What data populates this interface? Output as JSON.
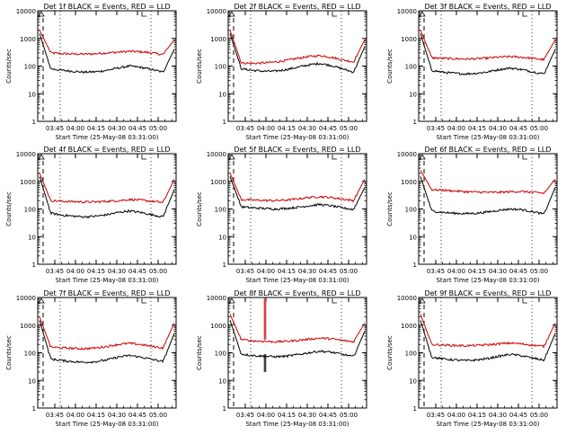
{
  "chart_data": [
    {
      "type": "line",
      "title": "Det 1f BLACK = Events, RED = LLD",
      "xlabel": "Start Time (25-May-08 03:31:00)",
      "ylabel": "Counts/sec",
      "yscale": "log",
      "ylim": [
        1,
        10000
      ],
      "y_ticks": [
        "1",
        "10",
        "100",
        "1000",
        "10000"
      ],
      "x_ticks": [
        "03:45",
        "04:00",
        "04:15",
        "04:30",
        "04:45",
        "05:00"
      ],
      "colors": {
        "Events": "#000000",
        "LLD": "#cc0000"
      },
      "series": [
        {
          "key": "LLD",
          "values": [
            2000,
            300,
            280,
            275,
            270,
            280,
            300,
            320,
            340,
            330,
            300,
            260,
            900
          ]
        },
        {
          "key": "Events",
          "values": [
            1500,
            80,
            70,
            65,
            60,
            62,
            70,
            85,
            100,
            90,
            75,
            60,
            400
          ]
        }
      ]
    },
    {
      "type": "line",
      "title": "Det 2f BLACK = Events, RED = LLD",
      "xlabel": "Start Time (25-May-08 03:31:00)",
      "ylabel": "Counts/sec",
      "yscale": "log",
      "ylim": [
        1,
        10000
      ],
      "y_ticks": [
        "1",
        "10",
        "100",
        "1000",
        "10000"
      ],
      "x_ticks": [
        "03:45",
        "04:00",
        "04:15",
        "04:30",
        "04:45",
        "05:00"
      ],
      "colors": {
        "Events": "#000000",
        "LLD": "#cc0000"
      },
      "series": [
        {
          "key": "LLD",
          "values": [
            2000,
            130,
            125,
            130,
            140,
            160,
            190,
            220,
            240,
            210,
            170,
            140,
            900
          ]
        },
        {
          "key": "Events",
          "values": [
            1500,
            80,
            70,
            65,
            65,
            75,
            90,
            110,
            125,
            105,
            80,
            60,
            500
          ]
        }
      ]
    },
    {
      "type": "line",
      "title": "Det 3f BLACK = Events, RED = LLD",
      "xlabel": "Start Time (25-May-08 03:31:00)",
      "ylabel": "Counts/sec",
      "yscale": "log",
      "ylim": [
        1,
        10000
      ],
      "y_ticks": [
        "1",
        "10",
        "100",
        "1000",
        "10000"
      ],
      "x_ticks": [
        "03:45",
        "04:00",
        "04:15",
        "04:30",
        "04:45",
        "05:00"
      ],
      "colors": {
        "Events": "#000000",
        "LLD": "#cc0000"
      },
      "series": [
        {
          "key": "LLD",
          "values": [
            2000,
            200,
            190,
            185,
            180,
            185,
            195,
            210,
            220,
            210,
            190,
            170,
            900
          ]
        },
        {
          "key": "Events",
          "values": [
            1500,
            70,
            60,
            55,
            52,
            55,
            62,
            75,
            85,
            75,
            62,
            52,
            400
          ]
        }
      ]
    },
    {
      "type": "line",
      "title": "Det 4f BLACK = Events, RED = LLD",
      "xlabel": "Start Time (25-May-08 03:31:00)",
      "ylabel": "Counts/sec",
      "yscale": "log",
      "ylim": [
        1,
        10000
      ],
      "y_ticks": [
        "1",
        "10",
        "100",
        "1000",
        "10000"
      ],
      "x_ticks": [
        "03:45",
        "04:00",
        "04:15",
        "04:30",
        "04:45",
        "05:00"
      ],
      "colors": {
        "Events": "#000000",
        "LLD": "#cc0000"
      },
      "series": [
        {
          "key": "LLD",
          "values": [
            2000,
            200,
            190,
            185,
            180,
            180,
            190,
            200,
            220,
            210,
            190,
            170,
            1200
          ]
        },
        {
          "key": "Events",
          "values": [
            1500,
            70,
            60,
            55,
            52,
            55,
            62,
            75,
            85,
            75,
            62,
            52,
            500
          ]
        }
      ]
    },
    {
      "type": "line",
      "title": "Det 5f BLACK = Events, RED = LLD",
      "xlabel": "Start Time (25-May-08 03:31:00)",
      "ylabel": "Counts/sec",
      "yscale": "log",
      "ylim": [
        1,
        10000
      ],
      "y_ticks": [
        "1",
        "10",
        "100",
        "1000",
        "10000"
      ],
      "x_ticks": [
        "03:45",
        "04:00",
        "04:15",
        "04:30",
        "04:45",
        "05:00"
      ],
      "colors": {
        "Events": "#000000",
        "LLD": "#cc0000"
      },
      "series": [
        {
          "key": "LLD",
          "values": [
            2000,
            220,
            210,
            205,
            200,
            210,
            230,
            260,
            280,
            260,
            230,
            200,
            1200
          ]
        },
        {
          "key": "Events",
          "values": [
            1500,
            120,
            110,
            105,
            100,
            105,
            115,
            130,
            145,
            130,
            110,
            95,
            600
          ]
        }
      ]
    },
    {
      "type": "line",
      "title": "Det 6f BLACK = Events, RED = LLD",
      "xlabel": "Start Time (25-May-08 03:31:00)",
      "ylabel": "Counts/sec",
      "yscale": "log",
      "ylim": [
        1,
        10000
      ],
      "y_ticks": [
        "1",
        "10",
        "100",
        "1000",
        "10000"
      ],
      "x_ticks": [
        "03:45",
        "04:00",
        "04:15",
        "04:30",
        "04:45",
        "05:00"
      ],
      "colors": {
        "Events": "#000000",
        "LLD": "#cc0000"
      },
      "series": [
        {
          "key": "LLD",
          "values": [
            2500,
            500,
            480,
            450,
            420,
            410,
            400,
            400,
            420,
            430,
            400,
            370,
            1200
          ]
        },
        {
          "key": "Events",
          "values": [
            1500,
            85,
            75,
            70,
            68,
            70,
            78,
            90,
            100,
            95,
            80,
            65,
            600
          ]
        }
      ]
    },
    {
      "type": "line",
      "title": "Det 7f BLACK = Events, RED = LLD",
      "xlabel": "Start Time (25-May-08 03:31:00)",
      "ylabel": "Counts/sec",
      "yscale": "log",
      "ylim": [
        1,
        10000
      ],
      "y_ticks": [
        "1",
        "10",
        "100",
        "1000",
        "10000"
      ],
      "x_ticks": [
        "03:45",
        "04:00",
        "04:15",
        "04:30",
        "04:45",
        "05:00"
      ],
      "colors": {
        "Events": "#000000",
        "LLD": "#cc0000"
      },
      "series": [
        {
          "key": "LLD",
          "values": [
            2000,
            160,
            150,
            145,
            140,
            150,
            170,
            200,
            220,
            200,
            170,
            150,
            1200
          ]
        },
        {
          "key": "Events",
          "values": [
            1500,
            60,
            52,
            48,
            45,
            48,
            55,
            70,
            80,
            70,
            58,
            48,
            500
          ]
        }
      ]
    },
    {
      "type": "line",
      "title": "Det 8f BLACK = Events, RED = LLD",
      "xlabel": "Start Time (25-May-08 03:31:00)",
      "ylabel": "Counts/sec",
      "yscale": "log",
      "ylim": [
        1,
        10000
      ],
      "y_ticks": [
        "1",
        "10",
        "100",
        "1000",
        "10000"
      ],
      "x_ticks": [
        "03:45",
        "04:00",
        "04:15",
        "04:30",
        "04:45",
        "05:00"
      ],
      "colors": {
        "Events": "#000000",
        "LLD": "#cc0000"
      },
      "series": [
        {
          "key": "LLD",
          "values": [
            2500,
            300,
            270,
            260,
            250,
            260,
            280,
            310,
            340,
            320,
            280,
            250,
            1200
          ]
        },
        {
          "key": "Events",
          "values": [
            1500,
            90,
            80,
            75,
            72,
            75,
            85,
            100,
            115,
            105,
            88,
            72,
            600
          ]
        }
      ],
      "spikes": [
        {
          "series": "LLD",
          "x_frac": 0.255,
          "values": [
            300,
            10000
          ]
        },
        {
          "series": "LLD",
          "x_frac": 0.265,
          "values": [
            300,
            10000
          ]
        },
        {
          "series": "Events",
          "x_frac": 0.255,
          "values": [
            20,
            90
          ]
        },
        {
          "series": "Events",
          "x_frac": 0.265,
          "values": [
            20,
            90
          ]
        }
      ]
    },
    {
      "type": "line",
      "title": "Det 9f BLACK = Events, RED = LLD",
      "xlabel": "Start Time (25-May-08 03:31:00)",
      "ylabel": "Counts/sec",
      "yscale": "log",
      "ylim": [
        1,
        10000
      ],
      "y_ticks": [
        "1",
        "10",
        "100",
        "1000",
        "10000"
      ],
      "x_ticks": [
        "03:45",
        "04:00",
        "04:15",
        "04:30",
        "04:45",
        "05:00"
      ],
      "colors": {
        "Events": "#000000",
        "LLD": "#cc0000"
      },
      "series": [
        {
          "key": "LLD",
          "values": [
            2500,
            200,
            190,
            185,
            180,
            185,
            195,
            210,
            225,
            210,
            190,
            170,
            1200
          ]
        },
        {
          "key": "Events",
          "values": [
            1500,
            70,
            60,
            55,
            52,
            55,
            62,
            75,
            88,
            78,
            64,
            54,
            500
          ]
        }
      ]
    }
  ]
}
